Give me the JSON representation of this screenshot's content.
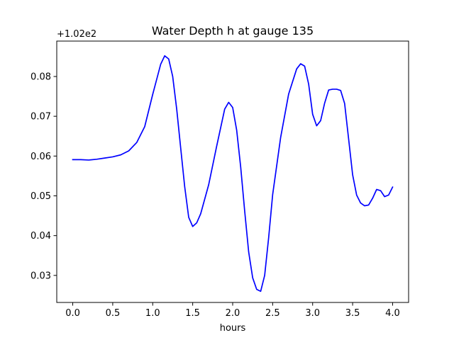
{
  "chart_data": {
    "type": "line",
    "title": "Water Depth h at gauge 135",
    "xlabel": "hours",
    "ylabel": "",
    "y_offset_label": "+1.02e2",
    "xlim": [
      -0.2,
      4.2
    ],
    "ylim": [
      0.0232,
      0.0889
    ],
    "x_ticks": [
      0.0,
      0.5,
      1.0,
      1.5,
      2.0,
      2.5,
      3.0,
      3.5,
      4.0
    ],
    "x_tick_labels": [
      "0.0",
      "0.5",
      "1.0",
      "1.5",
      "2.0",
      "2.5",
      "3.0",
      "3.5",
      "4.0"
    ],
    "y_ticks": [
      0.03,
      0.04,
      0.05,
      0.06,
      0.07,
      0.08
    ],
    "y_tick_labels": [
      "0.03",
      "0.04",
      "0.05",
      "0.06",
      "0.07",
      "0.08"
    ],
    "grid": false,
    "series": [
      {
        "color": "#0000ff",
        "x": [
          0.0,
          0.1,
          0.2,
          0.3,
          0.4,
          0.5,
          0.6,
          0.7,
          0.8,
          0.9,
          1.0,
          1.05,
          1.1,
          1.15,
          1.2,
          1.25,
          1.3,
          1.35,
          1.4,
          1.45,
          1.5,
          1.55,
          1.6,
          1.7,
          1.8,
          1.9,
          1.95,
          2.0,
          2.05,
          2.1,
          2.15,
          2.2,
          2.25,
          2.3,
          2.35,
          2.4,
          2.45,
          2.5,
          2.6,
          2.7,
          2.8,
          2.85,
          2.9,
          2.95,
          3.0,
          3.05,
          3.1,
          3.15,
          3.2,
          3.25,
          3.3,
          3.35,
          3.4,
          3.45,
          3.5,
          3.55,
          3.6,
          3.65,
          3.7,
          3.75,
          3.8,
          3.85,
          3.9,
          3.95,
          4.0
        ],
        "y": [
          0.0591,
          0.0591,
          0.059,
          0.0592,
          0.0595,
          0.0598,
          0.0603,
          0.0613,
          0.0634,
          0.0674,
          0.0755,
          0.0793,
          0.0831,
          0.0852,
          0.0844,
          0.08,
          0.0718,
          0.062,
          0.0523,
          0.0446,
          0.0423,
          0.0432,
          0.0455,
          0.0528,
          0.0625,
          0.0718,
          0.0735,
          0.0722,
          0.0665,
          0.0573,
          0.0462,
          0.0359,
          0.0294,
          0.0265,
          0.026,
          0.03,
          0.0395,
          0.0503,
          0.0647,
          0.0756,
          0.0819,
          0.0832,
          0.0826,
          0.0781,
          0.0705,
          0.0676,
          0.0689,
          0.0733,
          0.0766,
          0.0768,
          0.0768,
          0.0765,
          0.0732,
          0.0643,
          0.0553,
          0.0502,
          0.0482,
          0.0475,
          0.0477,
          0.0494,
          0.0516,
          0.0513,
          0.0498,
          0.0502,
          0.0522
        ]
      }
    ]
  }
}
